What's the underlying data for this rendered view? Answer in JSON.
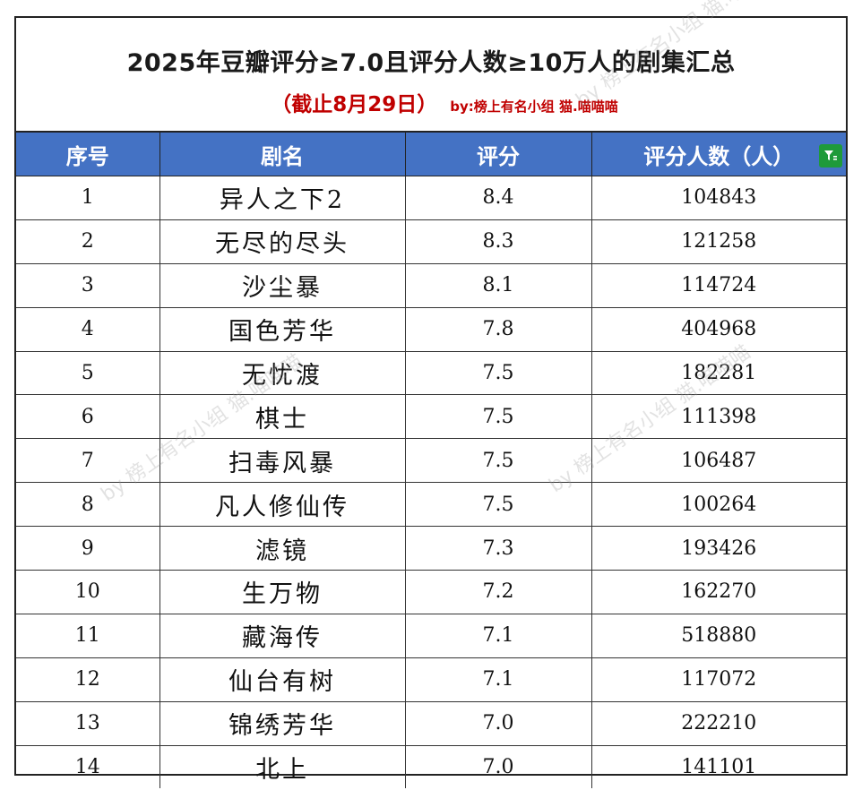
{
  "title": "2025年豆瓣评分≥7.0且评分人数≥10万人的剧集汇总",
  "subtitle": "（截止8月29日）",
  "credit": "by:榜上有名小组 猫.喵喵喵",
  "watermark": "by 榜上有名小组 猫.喵喵喵",
  "header_color": "#4472c4",
  "filter_icon_color": "#1e9a3a",
  "columns": [
    "序号",
    "剧名",
    "评分",
    "评分人数（人）"
  ],
  "rows": [
    [
      "1",
      "异人之下2",
      "8.4",
      "104843"
    ],
    [
      "2",
      "无尽的尽头",
      "8.3",
      "121258"
    ],
    [
      "3",
      "沙尘暴",
      "8.1",
      "114724"
    ],
    [
      "4",
      "国色芳华",
      "7.8",
      "404968"
    ],
    [
      "5",
      "无忧渡",
      "7.5",
      "182281"
    ],
    [
      "6",
      "棋士",
      "7.5",
      "111398"
    ],
    [
      "7",
      "扫毒风暴",
      "7.5",
      "106487"
    ],
    [
      "8",
      "凡人修仙传",
      "7.5",
      "100264"
    ],
    [
      "9",
      "滤镜",
      "7.3",
      "193426"
    ],
    [
      "10",
      "生万物",
      "7.2",
      "162270"
    ],
    [
      "11",
      "藏海传",
      "7.1",
      "518880"
    ],
    [
      "12",
      "仙台有树",
      "7.1",
      "117072"
    ],
    [
      "13",
      "锦绣芳华",
      "7.0",
      "222210"
    ],
    [
      "14",
      "北上",
      "7.0",
      "141101"
    ]
  ]
}
